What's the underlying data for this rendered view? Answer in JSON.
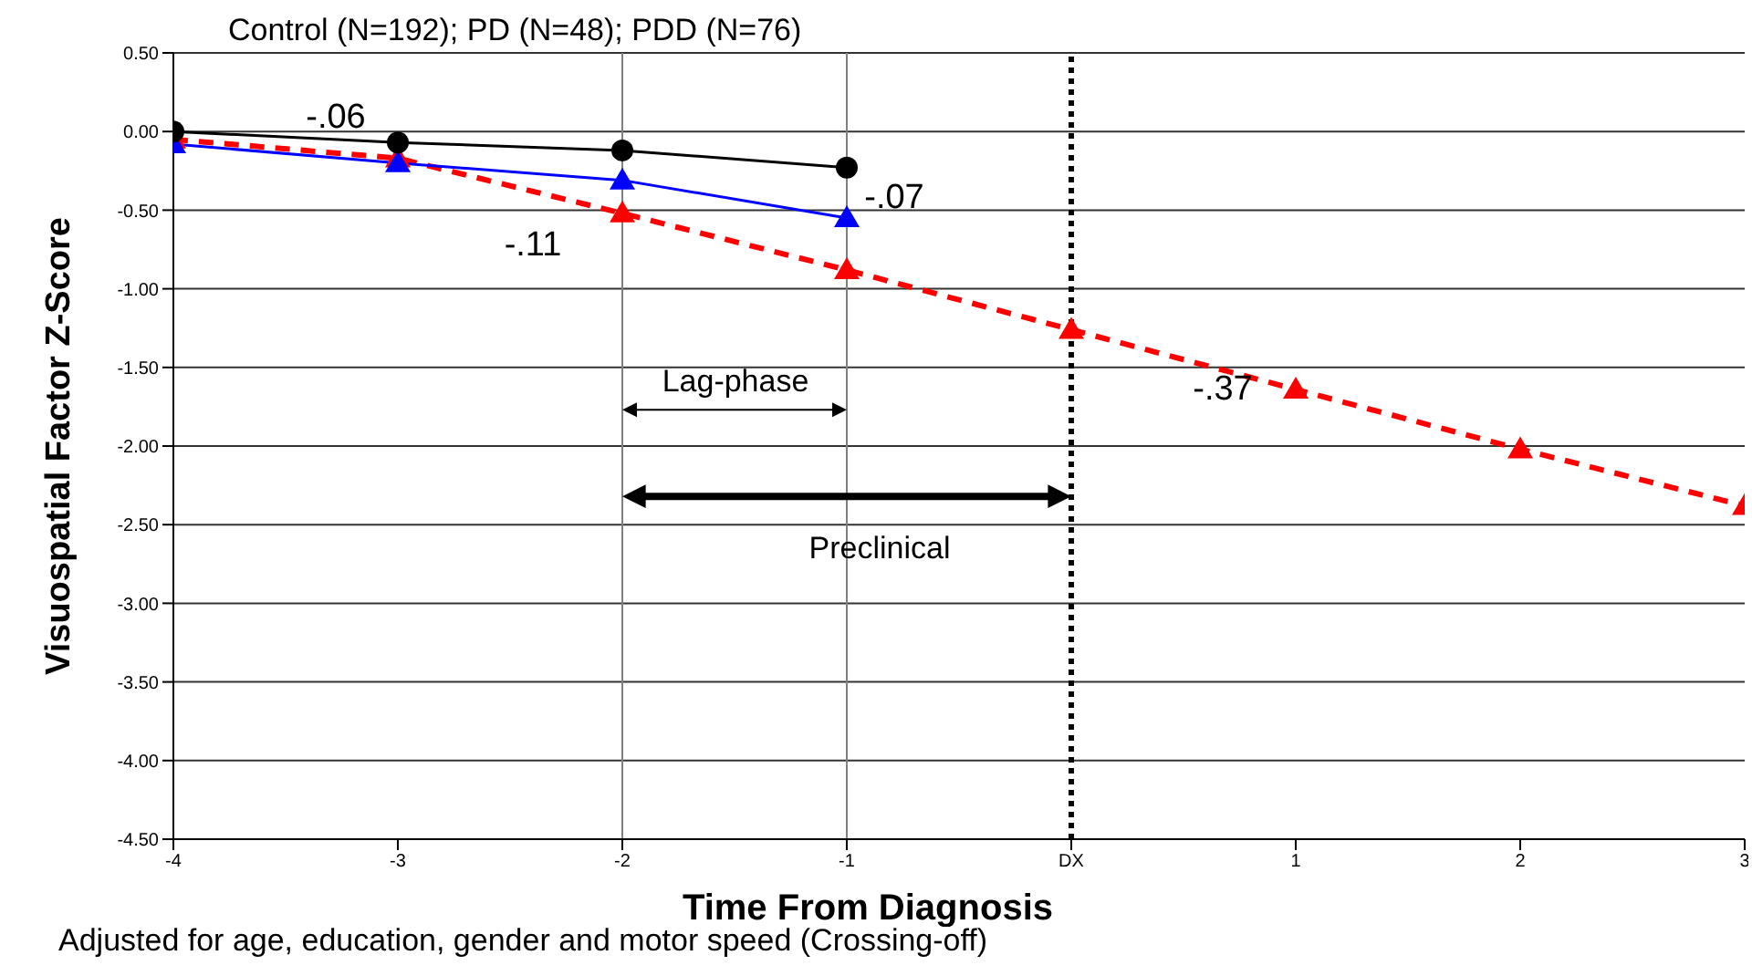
{
  "chart_data": {
    "type": "line",
    "subtitle": "Control (N=192); PD (N=48); PDD (N=76)",
    "xlabel": "Time From  Diagnosis",
    "ylabel": "Visuospatial Factor Z-Score",
    "x": [
      -4,
      -3,
      -2,
      -1,
      0,
      1,
      2,
      3
    ],
    "xlim": [
      -4,
      3
    ],
    "xticks": [
      -4,
      -3,
      -2,
      -1,
      {
        "value": 0,
        "label": "DX"
      },
      1,
      2,
      3
    ],
    "ylim": [
      -4.5,
      0.5
    ],
    "yticks": [
      {
        "value": 0.5,
        "label": "0.50"
      },
      {
        "value": 0,
        "label": "0.00"
      },
      {
        "value": -0.5,
        "label": "-0.50"
      },
      {
        "value": -1,
        "label": "-1.00"
      },
      {
        "value": -1.5,
        "label": "-1.50"
      },
      {
        "value": -2,
        "label": "-2.00"
      },
      {
        "value": -2.5,
        "label": "-2.50"
      },
      {
        "value": -3,
        "label": "-3.00"
      },
      {
        "value": -3.5,
        "label": "-3.50"
      },
      {
        "value": -4,
        "label": "-4.00"
      },
      {
        "value": -4.5,
        "label": "-4.50"
      }
    ],
    "grid": "y",
    "series": [
      {
        "color": "#000000",
        "marker": "circle",
        "line_style": "solid",
        "values": [
          0,
          -0.07,
          -0.12,
          -0.23,
          null,
          null,
          null,
          null
        ]
      },
      {
        "color": "#0000ff",
        "marker": "triangle",
        "line_style": "solid",
        "values": [
          -0.08,
          -0.2,
          -0.31,
          -0.55,
          null,
          null,
          null,
          null
        ]
      },
      {
        "color": "#ff0000",
        "marker": "triangle",
        "line_style": "dashed",
        "values": [
          -0.05,
          -0.17,
          -0.52,
          -0.88,
          -1.26,
          -1.64,
          -2.02,
          -2.38
        ]
      }
    ],
    "ref_lines": [
      {
        "axis": "x",
        "value": -2,
        "color": "#808080",
        "line_style": "solid"
      },
      {
        "axis": "x",
        "value": -1,
        "color": "#808080",
        "line_style": "solid"
      },
      {
        "axis": "x",
        "value": 0,
        "color": "#000000",
        "line_style": "dotted"
      }
    ],
    "annotations": [
      "-.06",
      "-.11",
      "-.07",
      "-.37",
      "Lag-phase",
      "Preclinical",
      "Adjusted for age, education, gender and motor speed (Crossing-off)"
    ]
  }
}
